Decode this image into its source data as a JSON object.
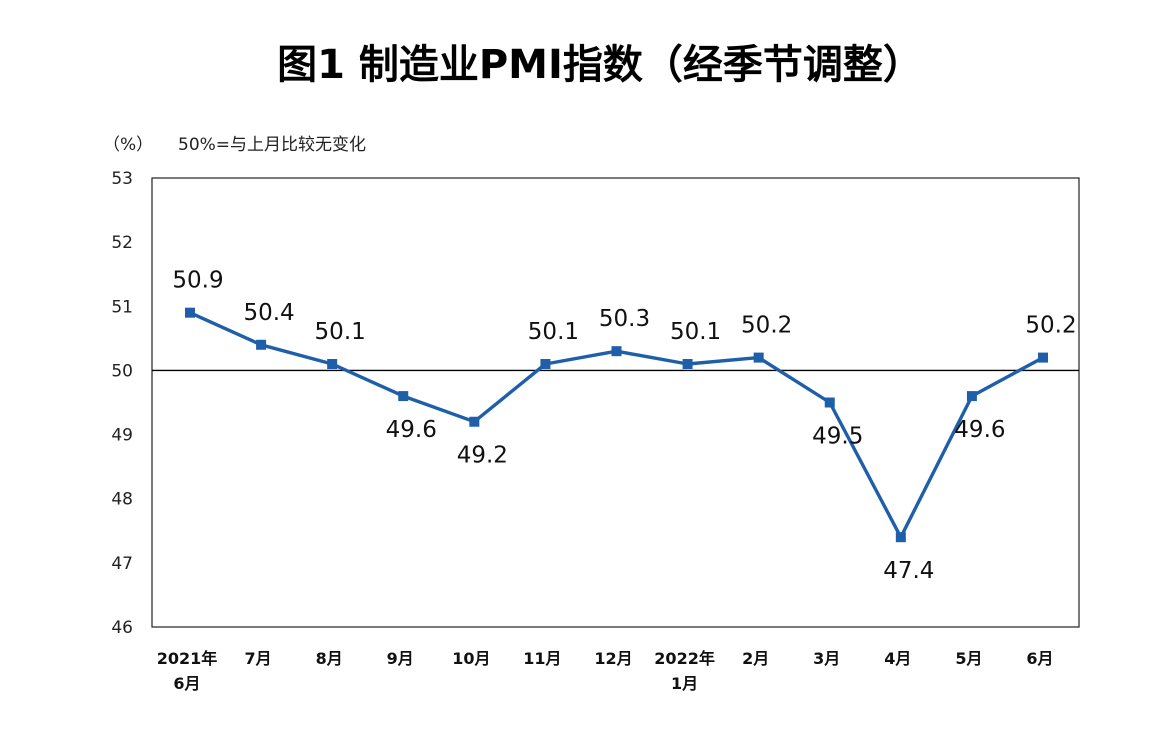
{
  "chart_data": {
    "type": "line",
    "title": "图1  制造业PMI指数（经季节调整）",
    "unit_label": "（%）",
    "annotation": "50%=与上月比较无变化",
    "categories": [
      [
        "2021年",
        "6月"
      ],
      [
        "7月"
      ],
      [
        "8月"
      ],
      [
        "9月"
      ],
      [
        "10月"
      ],
      [
        "11月"
      ],
      [
        "12月"
      ],
      [
        "2022年",
        "1月"
      ],
      [
        "2月"
      ],
      [
        "3月"
      ],
      [
        "4月"
      ],
      [
        "5月"
      ],
      [
        "6月"
      ]
    ],
    "values": [
      50.9,
      50.4,
      50.1,
      49.6,
      49.2,
      50.1,
      50.3,
      50.1,
      50.2,
      49.5,
      47.4,
      49.6,
      50.2
    ],
    "data_labels": [
      "50.9",
      "50.4",
      "50.1",
      "49.6",
      "49.2",
      "50.1",
      "50.3",
      "50.1",
      "50.2",
      "49.5",
      "47.4",
      "49.6",
      "50.2"
    ],
    "label_positions": [
      "above",
      "above",
      "above",
      "below",
      "below",
      "above",
      "above",
      "above",
      "above",
      "below",
      "below",
      "below",
      "above"
    ],
    "ylim": [
      46,
      53
    ],
    "yticks": [
      "46",
      "47",
      "48",
      "49",
      "50",
      "51",
      "52",
      "53"
    ],
    "reference_line": 50,
    "series_color": "#1f5faa",
    "grid": false
  }
}
